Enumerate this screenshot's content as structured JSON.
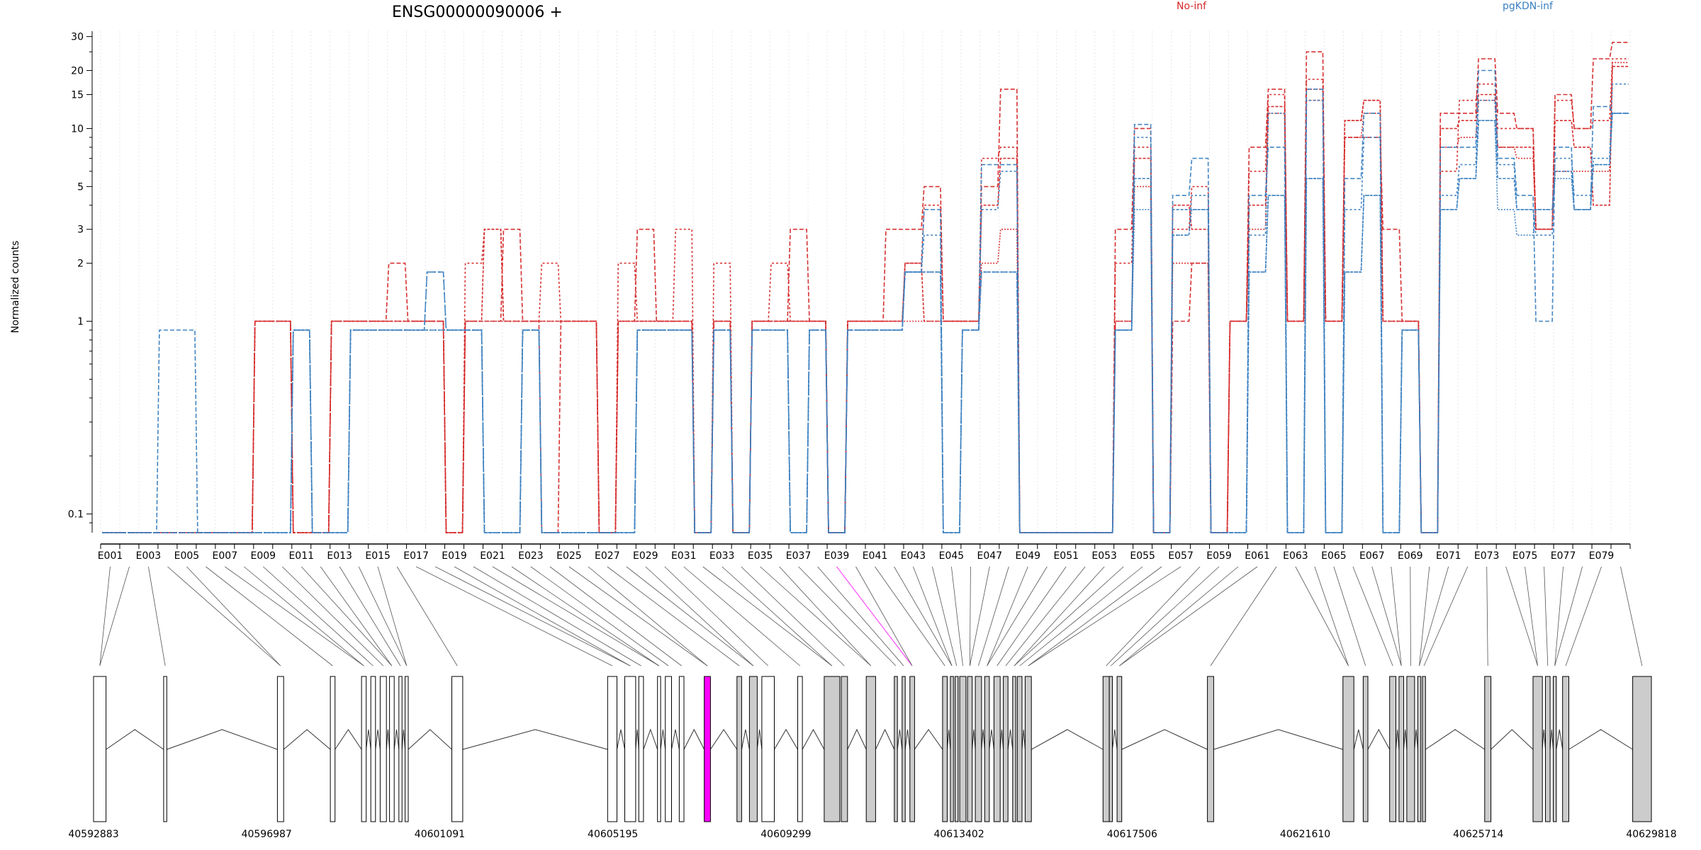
{
  "chart_data": {
    "type": "line",
    "title": "ENSG00000090006 +",
    "ylabel": "Normalized counts",
    "xlabel": "",
    "yscale": "log",
    "ylim": [
      0.08,
      32
    ],
    "yticks": [
      "0.1",
      "1",
      "2",
      "3",
      "5",
      "10",
      "15",
      "20",
      "30"
    ],
    "legend_position": "top-right",
    "legend": [
      {
        "name": "No-inf",
        "color": "#d62728"
      },
      {
        "name": "pgKDN-inf",
        "color": "#3a7fc0"
      }
    ],
    "exon_labels": [
      "E001",
      "E003",
      "E005",
      "E007",
      "E009",
      "E011",
      "E013",
      "E015",
      "E017",
      "E019",
      "E021",
      "E023",
      "E025",
      "E027",
      "E029",
      "E031",
      "E033",
      "E035",
      "E037",
      "E039",
      "E041",
      "E043",
      "E045",
      "E047",
      "E049",
      "E051",
      "E053",
      "E055",
      "E057",
      "E059",
      "E061",
      "E063",
      "E065",
      "E067",
      "E069",
      "E071",
      "E073",
      "E075",
      "E077",
      "E079"
    ],
    "genomic_ticks": [
      "40592883",
      "40596987",
      "40601091",
      "40605195",
      "40609299",
      "40613402",
      "40617506",
      "40621610",
      "40625714",
      "40629818"
    ],
    "highlighted_exon": "E039",
    "highlight_color": "#ff00ff",
    "exon_count": 80,
    "series": [
      {
        "name": "No-inf rep1",
        "group": "No-inf",
        "values": [
          0.08,
          0.08,
          0.08,
          0.08,
          0.08,
          0.08,
          0.08,
          0.08,
          1,
          1,
          0.08,
          0.08,
          1,
          1,
          1,
          2,
          1,
          1,
          0.08,
          1,
          1,
          3,
          1,
          0.08,
          1,
          1,
          0.08,
          1,
          3,
          1,
          1,
          0.08,
          1,
          0.08,
          1,
          1,
          3,
          1,
          0.08,
          1,
          1,
          3,
          3,
          5,
          1,
          1,
          5,
          16,
          0.08,
          0.08,
          0.08,
          0.08,
          0.08,
          3,
          10,
          0.08,
          1,
          2,
          0.08,
          1,
          8,
          16,
          1,
          25,
          1,
          9,
          9,
          3,
          1,
          0.08,
          12,
          12,
          23,
          12,
          10,
          3,
          15,
          10,
          23,
          28
        ]
      },
      {
        "name": "No-inf rep2",
        "group": "No-inf",
        "values": [
          0.08,
          0.08,
          0.08,
          0.08,
          0.08,
          0.08,
          0.08,
          0.08,
          1,
          1,
          0.08,
          0.08,
          1,
          1,
          1,
          1,
          1,
          1,
          0.08,
          2,
          3,
          1,
          1,
          2,
          1,
          1,
          0.08,
          2,
          1,
          1,
          3,
          0.08,
          2,
          0.08,
          1,
          2,
          1,
          1,
          0.08,
          1,
          1,
          1,
          2,
          4,
          1,
          1,
          7,
          8,
          0.08,
          0.08,
          0.08,
          0.08,
          0.08,
          2,
          8,
          0.08,
          3,
          5,
          0.08,
          1,
          6,
          15,
          1,
          18,
          1,
          11,
          14,
          1,
          1,
          0.08,
          6,
          14,
          17,
          10,
          10,
          3,
          14,
          10,
          11,
          23
        ]
      },
      {
        "name": "No-inf rep3",
        "group": "No-inf",
        "values": [
          0.08,
          0.08,
          0.08,
          0.08,
          0.08,
          0.08,
          0.08,
          0.08,
          1,
          1,
          0.08,
          0.08,
          1,
          1,
          1,
          1,
          1,
          1,
          0.08,
          1,
          3,
          1,
          1,
          1,
          1,
          1,
          0.08,
          1,
          1,
          1,
          1,
          0.08,
          1,
          0.08,
          1,
          1,
          1,
          1,
          0.08,
          1,
          1,
          1,
          2,
          1,
          1,
          1,
          4,
          7,
          0.08,
          0.08,
          0.08,
          0.08,
          0.08,
          1,
          7,
          0.08,
          4,
          3,
          0.08,
          1,
          4,
          13,
          1,
          14,
          1,
          11,
          14,
          1,
          1,
          0.08,
          10,
          11,
          15,
          8,
          8,
          3,
          11,
          8,
          4,
          21
        ]
      },
      {
        "name": "No-inf rep4",
        "group": "No-inf",
        "values": [
          0.08,
          0.08,
          0.08,
          0.08,
          0.08,
          0.08,
          0.08,
          0.08,
          1,
          1,
          0.08,
          0.08,
          1,
          1,
          1,
          1,
          1,
          1,
          0.08,
          1,
          1,
          1,
          1,
          1,
          1,
          1,
          0.08,
          1,
          1,
          1,
          1,
          0.08,
          1,
          0.08,
          1,
          1,
          1,
          1,
          0.08,
          1,
          1,
          1,
          1,
          1,
          1,
          1,
          2,
          3,
          0.08,
          0.08,
          0.08,
          0.08,
          0.08,
          1,
          5,
          0.08,
          2,
          2,
          0.08,
          1,
          3,
          12,
          1,
          16,
          1,
          9,
          12,
          1,
          1,
          0.08,
          8,
          9,
          14,
          8,
          7,
          3,
          6,
          6,
          6,
          22
        ]
      },
      {
        "name": "pgKDN-inf rep1",
        "group": "pgKDN-inf",
        "values": [
          0.08,
          0.08,
          0.08,
          0.9,
          0.9,
          0.08,
          0.08,
          0.08,
          0.08,
          0.08,
          0.9,
          0.08,
          0.08,
          0.9,
          0.9,
          0.9,
          0.9,
          1.8,
          0.9,
          0.9,
          0.08,
          0.08,
          0.9,
          0.08,
          0.08,
          0.08,
          0.08,
          0.08,
          0.9,
          0.9,
          0.9,
          0.08,
          0.9,
          0.08,
          0.9,
          0.9,
          0.08,
          0.9,
          0.08,
          0.9,
          0.9,
          0.9,
          1.8,
          3.8,
          0.08,
          0.9,
          6.5,
          6.5,
          0.08,
          0.08,
          0.08,
          0.08,
          0.08,
          0.9,
          10.5,
          0.08,
          4.5,
          7,
          0.08,
          0.08,
          4.5,
          8,
          0.08,
          16,
          0.08,
          5.5,
          12,
          0.08,
          0.9,
          0.08,
          8,
          8,
          20,
          7,
          4.5,
          1,
          8,
          3.8,
          13,
          12
        ]
      },
      {
        "name": "pgKDN-inf rep2",
        "group": "pgKDN-inf",
        "values": [
          0.08,
          0.08,
          0.08,
          0.08,
          0.08,
          0.08,
          0.08,
          0.08,
          0.08,
          0.08,
          0.9,
          0.08,
          0.08,
          0.9,
          0.9,
          0.9,
          0.9,
          1.8,
          0.9,
          0.9,
          0.08,
          0.08,
          0.9,
          0.08,
          0.08,
          0.08,
          0.08,
          0.08,
          0.9,
          0.9,
          0.9,
          0.08,
          0.9,
          0.08,
          0.9,
          0.9,
          0.08,
          0.9,
          0.08,
          0.9,
          0.9,
          0.9,
          1.8,
          2.8,
          0.08,
          0.9,
          3.8,
          6,
          0.08,
          0.08,
          0.08,
          0.08,
          0.08,
          0.9,
          9,
          0.08,
          2.8,
          4.5,
          0.08,
          0.08,
          2.8,
          12,
          0.08,
          14,
          0.08,
          3.8,
          9,
          0.08,
          0.9,
          0.08,
          4.5,
          6.5,
          14,
          6.5,
          3.8,
          2.8,
          7,
          4.5,
          7,
          17
        ]
      },
      {
        "name": "pgKDN-inf rep3",
        "group": "pgKDN-inf",
        "values": [
          0.08,
          0.08,
          0.08,
          0.08,
          0.08,
          0.08,
          0.08,
          0.08,
          0.08,
          0.08,
          0.9,
          0.08,
          0.08,
          0.9,
          0.9,
          0.9,
          0.9,
          0.9,
          0.9,
          0.9,
          0.08,
          0.08,
          0.9,
          0.08,
          0.08,
          0.08,
          0.08,
          0.08,
          0.9,
          0.9,
          0.9,
          0.08,
          0.9,
          0.08,
          0.9,
          0.9,
          0.08,
          0.9,
          0.08,
          0.9,
          0.9,
          0.9,
          1.8,
          1.8,
          0.08,
          0.9,
          1.8,
          1.8,
          0.08,
          0.08,
          0.08,
          0.08,
          0.08,
          0.9,
          5.5,
          0.08,
          3.8,
          3.8,
          0.08,
          0.08,
          1.8,
          4.5,
          0.08,
          5.5,
          0.08,
          1.8,
          4.5,
          0.08,
          0.9,
          0.08,
          3.8,
          5.5,
          11,
          5.5,
          3.8,
          3.8,
          6,
          3.8,
          6.5,
          12
        ]
      },
      {
        "name": "pgKDN-inf rep4",
        "group": "pgKDN-inf",
        "values": [
          0.08,
          0.08,
          0.08,
          0.08,
          0.08,
          0.08,
          0.08,
          0.08,
          0.08,
          0.08,
          0.9,
          0.08,
          0.08,
          0.9,
          0.9,
          0.9,
          0.9,
          0.9,
          0.9,
          0.9,
          0.08,
          0.08,
          0.9,
          0.08,
          0.08,
          0.08,
          0.08,
          0.08,
          0.9,
          0.9,
          0.9,
          0.08,
          0.9,
          0.08,
          0.9,
          0.9,
          0.08,
          0.9,
          0.08,
          0.9,
          0.9,
          0.9,
          1.8,
          1.8,
          0.08,
          0.9,
          1.8,
          1.8,
          0.08,
          0.08,
          0.08,
          0.08,
          0.08,
          0.9,
          3.8,
          0.08,
          2.8,
          3.8,
          0.08,
          0.08,
          1.8,
          4.5,
          0.08,
          5.5,
          0.08,
          1.8,
          4.5,
          0.08,
          0.9,
          0.08,
          3.8,
          5.5,
          11,
          3.8,
          2.8,
          3.8,
          5.5,
          3.8,
          6.5,
          12
        ]
      }
    ]
  }
}
